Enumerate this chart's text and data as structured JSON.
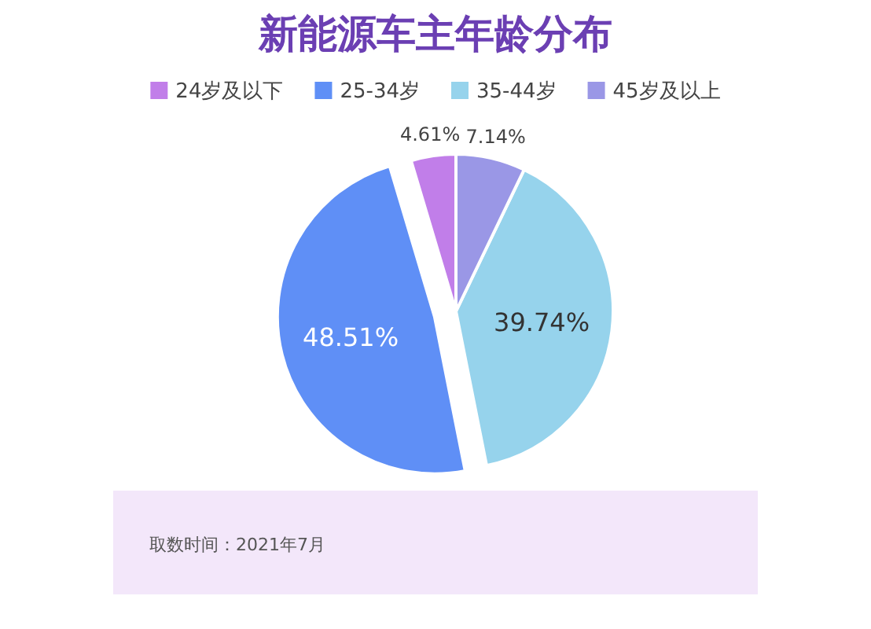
{
  "chart_data": {
    "type": "pie",
    "title": "新能源车主年龄分布",
    "categories": [
      "24岁及以下",
      "25-34岁",
      "35-44岁",
      "45岁及以上"
    ],
    "values": [
      4.61,
      48.51,
      39.74,
      7.14
    ],
    "value_labels": [
      "4.61%",
      "48.51%",
      "39.74%",
      "7.14%"
    ],
    "colors": [
      "#c17ee9",
      "#5f8ff6",
      "#96d3ec",
      "#9a97e6"
    ],
    "legend": "top",
    "annotations": [
      "取数时间：2021年7月"
    ]
  }
}
